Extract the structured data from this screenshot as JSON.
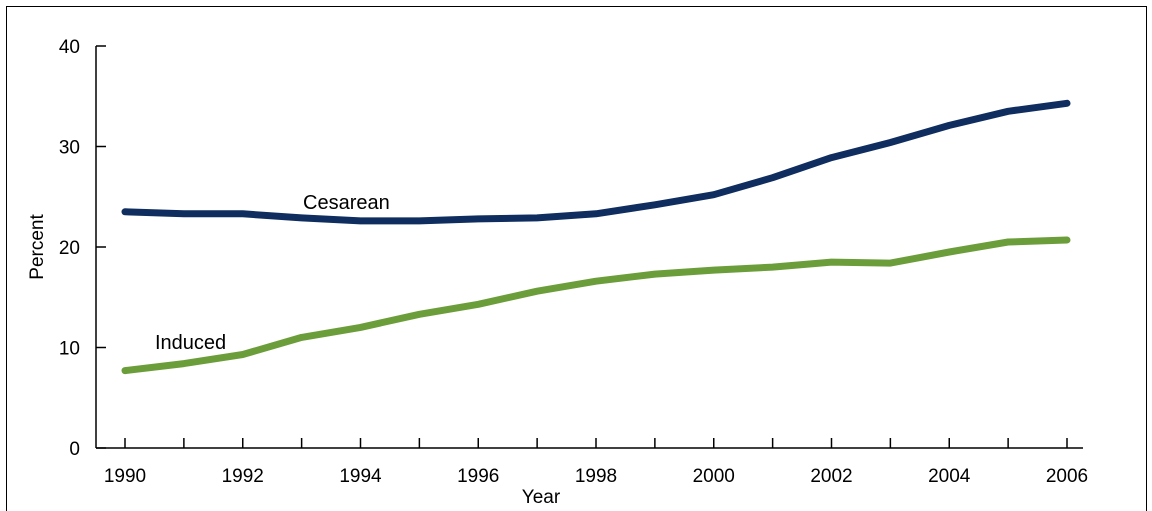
{
  "chart_data": {
    "type": "line",
    "title": "",
    "xlabel": "Year",
    "ylabel": "Percent",
    "xlim": [
      1990,
      2006
    ],
    "ylim": [
      0,
      40
    ],
    "x_ticks": [
      1990,
      1992,
      1994,
      1996,
      1998,
      2000,
      2002,
      2004,
      2006
    ],
    "y_ticks": [
      0,
      10,
      20,
      30,
      40
    ],
    "x": [
      1990,
      1991,
      1992,
      1993,
      1994,
      1995,
      1996,
      1997,
      1998,
      1999,
      2000,
      2001,
      2002,
      2003,
      2004,
      2005,
      2006
    ],
    "series": [
      {
        "name": "Cesarean",
        "color": "#0f2d5e",
        "values": [
          23.5,
          23.3,
          23.3,
          22.9,
          22.6,
          22.6,
          22.8,
          22.9,
          23.3,
          24.2,
          25.2,
          26.9,
          28.9,
          30.4,
          32.1,
          33.5,
          34.3
        ]
      },
      {
        "name": "Induced",
        "color": "#6b9e3a",
        "values": [
          7.7,
          8.4,
          9.3,
          11.0,
          12.0,
          13.3,
          14.3,
          15.6,
          16.6,
          17.3,
          17.7,
          18.0,
          18.5,
          18.4,
          19.5,
          20.5,
          20.7
        ]
      }
    ],
    "grid": false,
    "legend": "none"
  }
}
